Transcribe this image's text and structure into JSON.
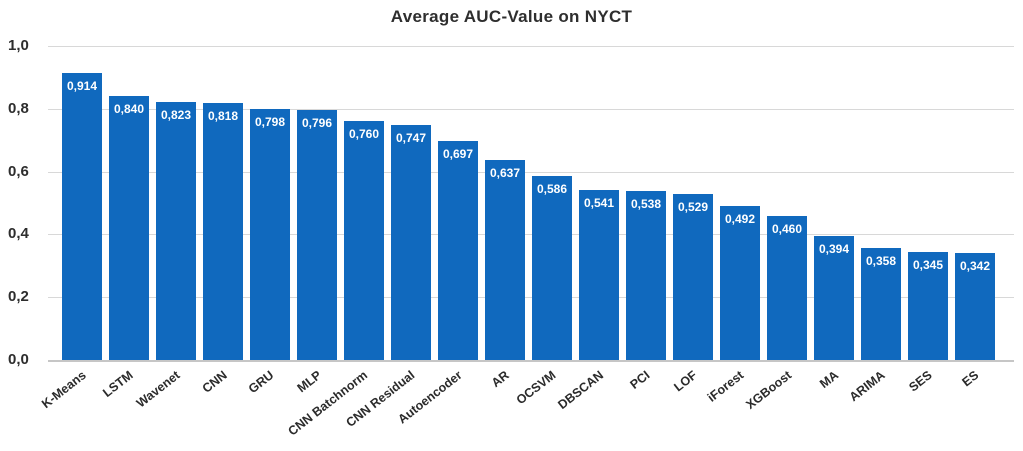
{
  "chart_data": {
    "type": "bar",
    "title": "Average AUC-Value on NYCT",
    "categories": [
      "K-Means",
      "LSTM",
      "Wavenet",
      "CNN",
      "GRU",
      "MLP",
      "CNN Batchnorm",
      "CNN Residual",
      "Autoencoder",
      "AR",
      "OCSVM",
      "DBSCAN",
      "PCI",
      "LOF",
      "iForest",
      "XGBoost",
      "MA",
      "ARIMA",
      "SES",
      "ES"
    ],
    "values": [
      0.914,
      0.84,
      0.823,
      0.818,
      0.798,
      0.796,
      0.76,
      0.747,
      0.697,
      0.637,
      0.586,
      0.541,
      0.538,
      0.529,
      0.492,
      0.46,
      0.394,
      0.358,
      0.345,
      0.342
    ],
    "value_labels": [
      "0,914",
      "0,840",
      "0,823",
      "0,818",
      "0,798",
      "0,796",
      "0,760",
      "0,747",
      "0,697",
      "0,637",
      "0,586",
      "0,541",
      "0,538",
      "0,529",
      "0,492",
      "0,460",
      "0,394",
      "0,358",
      "0,345",
      "0,342"
    ],
    "xlabel": "",
    "ylabel": "",
    "ylim": [
      0,
      1
    ],
    "y_ticks": [
      1.0,
      0.8,
      0.6,
      0.4,
      0.2,
      0.0
    ],
    "y_tick_labels": [
      "1,0",
      "0,8",
      "0,6",
      "0,4",
      "0,2",
      "0,0"
    ],
    "grid": "horizontal",
    "legend": "none",
    "bar_color": "#1069be",
    "value_label_color": "#ffffff",
    "grid_color": "#d8d8d8",
    "baseline_color": "#c6c6c6",
    "text_color": "#2b2b2b"
  }
}
